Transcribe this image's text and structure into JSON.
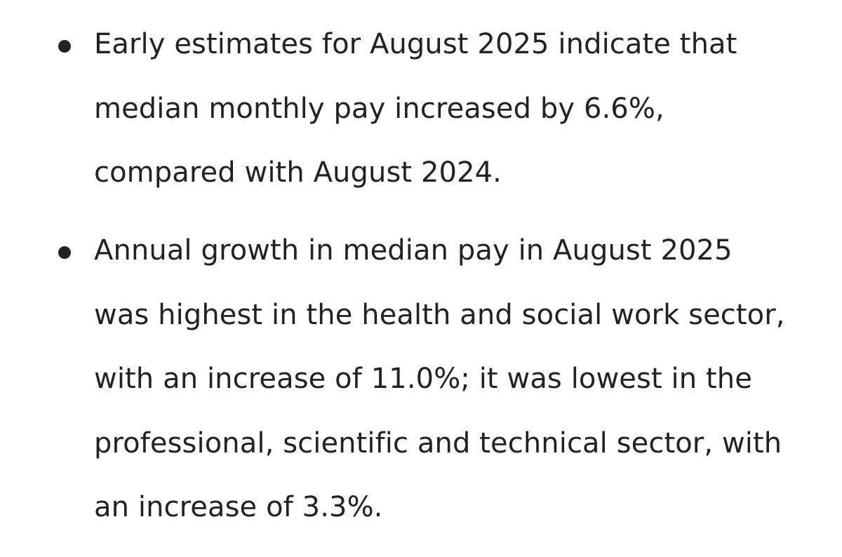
{
  "bullets": [
    {
      "lines": [
        "Early estimates for August 2025 indicate that",
        "median monthly pay increased by 6.6%,",
        "compared with August 2024."
      ]
    },
    {
      "lines": [
        "Annual growth in median pay in August 2025",
        "was highest in the health and social work sector,",
        "with an increase of 11.0%; it was lowest in the",
        "professional, scientific and technical sector, with",
        "an increase of 3.3%."
      ]
    }
  ]
}
